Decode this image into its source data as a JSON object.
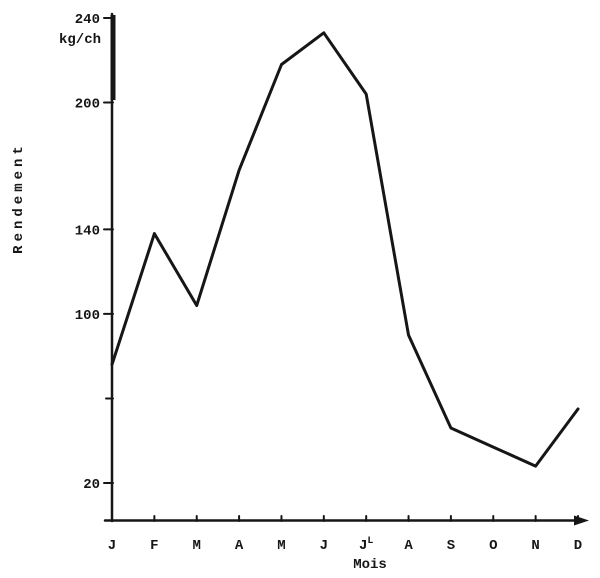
{
  "figure": {
    "background": "#ffffff",
    "ink_color": "#161616"
  },
  "chart_data": {
    "type": "line",
    "title": "",
    "xlabel": "Mois",
    "ylabel": "Rendement",
    "unit": "kg/ch",
    "categories": [
      "J",
      "F",
      "M",
      "A",
      "M",
      "J",
      "J",
      "A",
      "S",
      "O",
      "N",
      "D"
    ],
    "month_superscript": {
      "index": 6,
      "text": "L"
    },
    "values": [
      76,
      138,
      104,
      168,
      218,
      233,
      204,
      90,
      46,
      37,
      28,
      55
    ],
    "y_ticks": [
      240,
      200,
      140,
      100,
      20
    ],
    "y_minor_ticks": [
      60
    ],
    "ylim": [
      0,
      240
    ],
    "grid": false,
    "legend_position": "none"
  }
}
